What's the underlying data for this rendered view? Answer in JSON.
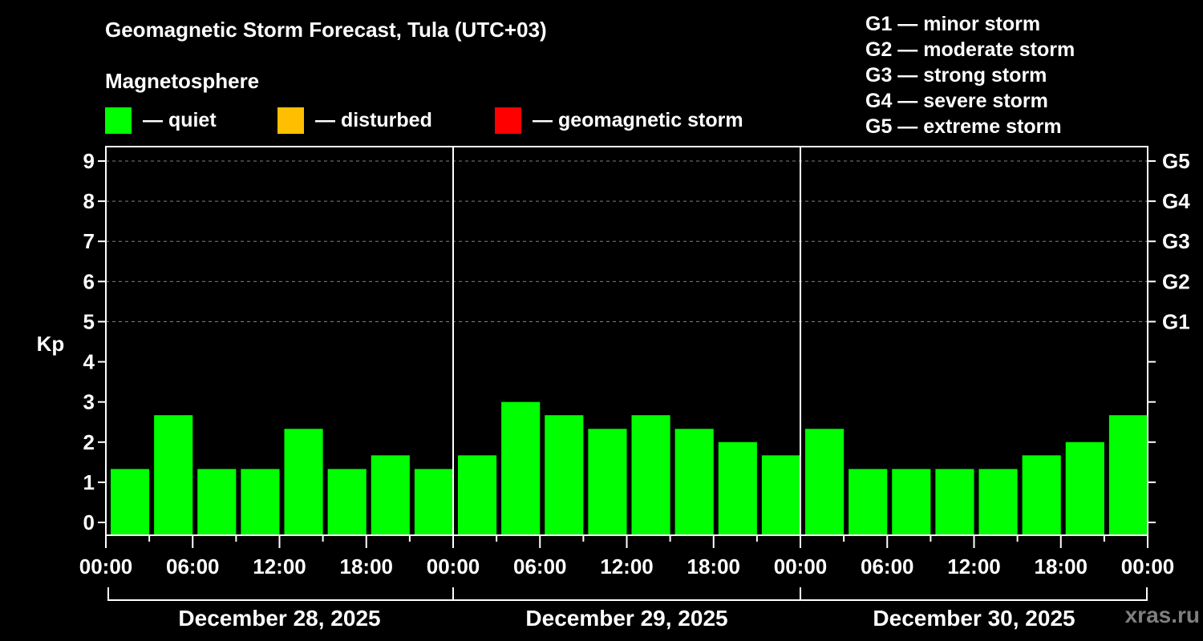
{
  "header": {
    "title": "Geomagnetic Storm Forecast, Tula (UTC+03)",
    "subtitle": "Magnetosphere"
  },
  "legend": [
    {
      "label": "— quiet",
      "color": "#00ff00"
    },
    {
      "label": "— disturbed",
      "color": "#ffbf00"
    },
    {
      "label": "— geomagnetic storm",
      "color": "#ff0000"
    }
  ],
  "g_legend": [
    "G1 — minor storm",
    "G2 — moderate storm",
    "G3 — strong storm",
    "G4 — severe storm",
    "G5 — extreme storm"
  ],
  "watermark": "xras.ru",
  "chart_data": {
    "type": "bar",
    "title": "Geomagnetic Storm Forecast, Tula (UTC+03)",
    "xlabel": "",
    "ylabel": "Kp",
    "ylim": [
      0,
      9
    ],
    "grid": "dashed horizontal lines at Kp 5–9",
    "yticks": [
      0,
      1,
      2,
      3,
      4,
      5,
      6,
      7,
      8,
      9
    ],
    "right_axis_labels": [
      {
        "kp": 5,
        "label": "G1"
      },
      {
        "kp": 6,
        "label": "G2"
      },
      {
        "kp": 7,
        "label": "G3"
      },
      {
        "kp": 8,
        "label": "G4"
      },
      {
        "kp": 9,
        "label": "G5"
      }
    ],
    "xtick_labels": [
      "00:00",
      "06:00",
      "12:00",
      "18:00",
      "00:00",
      "06:00",
      "12:00",
      "18:00",
      "00:00",
      "06:00",
      "12:00",
      "18:00",
      "00:00"
    ],
    "days": [
      "December 28, 2025",
      "December 29, 2025",
      "December 30, 2025"
    ],
    "categories": [
      "Dec 28 00-03",
      "Dec 28 03-06",
      "Dec 28 06-09",
      "Dec 28 09-12",
      "Dec 28 12-15",
      "Dec 28 15-18",
      "Dec 28 18-21",
      "Dec 28 21-24",
      "Dec 29 00-03",
      "Dec 29 03-06",
      "Dec 29 06-09",
      "Dec 29 09-12",
      "Dec 29 12-15",
      "Dec 29 15-18",
      "Dec 29 18-21",
      "Dec 29 21-24",
      "Dec 30 00-03",
      "Dec 30 03-06",
      "Dec 30 06-09",
      "Dec 30 09-12",
      "Dec 30 12-15",
      "Dec 30 15-18",
      "Dec 30 18-21",
      "Dec 30 21-24"
    ],
    "series": [
      {
        "name": "Kp",
        "values": [
          1.33,
          2.67,
          1.33,
          1.33,
          2.33,
          1.33,
          1.67,
          1.33,
          1.67,
          3.0,
          2.67,
          2.33,
          2.67,
          2.33,
          2.0,
          1.67,
          2.33,
          1.33,
          1.33,
          1.33,
          1.33,
          1.67,
          2.0,
          2.67
        ],
        "status": [
          "quiet",
          "quiet",
          "quiet",
          "quiet",
          "quiet",
          "quiet",
          "quiet",
          "quiet",
          "quiet",
          "quiet",
          "quiet",
          "quiet",
          "quiet",
          "quiet",
          "quiet",
          "quiet",
          "quiet",
          "quiet",
          "quiet",
          "quiet",
          "quiet",
          "quiet",
          "quiet",
          "quiet"
        ]
      }
    ],
    "colors": {
      "quiet": "#00ff00",
      "disturbed": "#ffbf00",
      "storm": "#ff0000"
    }
  }
}
